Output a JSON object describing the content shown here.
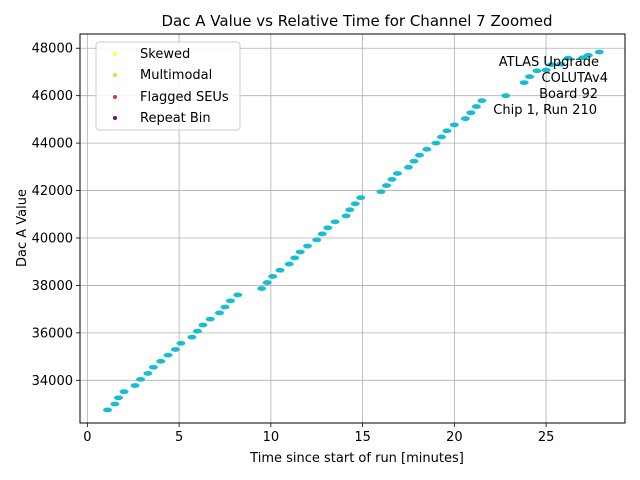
{
  "chart_data": {
    "type": "scatter",
    "title": "Dac A Value vs Relative Time for Channel 7 Zoomed",
    "xlabel": "Time since start of run [minutes]",
    "ylabel": "Dac A Value",
    "xlim": [
      -0.4,
      29.3
    ],
    "ylim": [
      32200,
      48600
    ],
    "xticks": [
      0,
      5,
      10,
      15,
      20,
      25
    ],
    "xtick_labels": [
      "0",
      "5",
      "10",
      "15",
      "20",
      "25"
    ],
    "yticks": [
      34000,
      36000,
      38000,
      40000,
      42000,
      44000,
      46000,
      48000
    ],
    "ytick_labels": [
      "34000",
      "36000",
      "38000",
      "40000",
      "42000",
      "44000",
      "46000",
      "48000"
    ],
    "grid": true,
    "legend_position": "top-left",
    "series": [
      {
        "name": "Skewed",
        "color": "#ffff33",
        "x": [],
        "y": []
      },
      {
        "name": "Multimodal",
        "color": "#adff2f",
        "x": [],
        "y": []
      },
      {
        "name": "Flagged SEUs",
        "color": "#e8303a",
        "x": [],
        "y": []
      },
      {
        "name": "Repeat Bin",
        "color": "#6a0f6f",
        "x": [],
        "y": []
      },
      {
        "name": "Data",
        "color": "#17becf",
        "show_in_legend": false,
        "x": [
          1.1,
          1.5,
          1.7,
          2.0,
          2.6,
          2.9,
          3.3,
          3.6,
          4.0,
          4.4,
          4.8,
          5.1,
          5.7,
          6.0,
          6.3,
          6.7,
          7.2,
          7.5,
          7.8,
          8.2,
          9.5,
          9.8,
          10.1,
          10.5,
          11.0,
          11.3,
          11.6,
          12.0,
          12.5,
          12.8,
          13.1,
          13.5,
          14.1,
          14.3,
          14.6,
          14.9,
          16.0,
          16.3,
          16.6,
          16.9,
          17.5,
          17.8,
          18.1,
          18.5,
          19.0,
          19.3,
          19.6,
          20.0,
          20.6,
          20.9,
          21.2,
          21.5,
          22.8,
          23.8,
          24.1,
          24.5,
          25.0,
          25.3,
          25.8,
          26.2,
          27.0,
          27.3,
          27.9
        ],
        "y": [
          32750,
          33000,
          33260,
          33520,
          33780,
          34040,
          34290,
          34550,
          34800,
          35060,
          35300,
          35560,
          35820,
          36070,
          36330,
          36580,
          36840,
          37090,
          37350,
          37600,
          37870,
          38120,
          38380,
          38640,
          38900,
          39160,
          39410,
          39660,
          39920,
          40170,
          40430,
          40680,
          40930,
          41190,
          41440,
          41700,
          41950,
          42210,
          42470,
          42720,
          42980,
          43240,
          43490,
          43740,
          44000,
          44260,
          44520,
          44770,
          45030,
          45280,
          45540,
          45790,
          46000,
          46550,
          46800,
          47050,
          47080,
          47310,
          47330,
          47580,
          47600,
          47700,
          47840
        ]
      }
    ],
    "annotation": {
      "lines": [
        "ATLAS Upgrade",
        "COLUTAv4",
        "Board 92",
        "Chip 1, Run 210"
      ],
      "position": "top-right"
    }
  }
}
